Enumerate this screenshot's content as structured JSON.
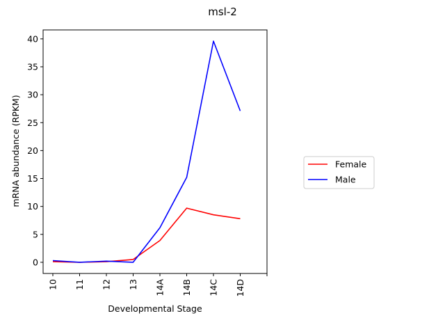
{
  "chart_data": {
    "type": "line",
    "title": "msl-2",
    "xlabel": "Developmental Stage",
    "ylabel": "mRNA abundance (RPKM)",
    "categories": [
      "10",
      "11",
      "12",
      "13",
      "14A",
      "14B",
      "14C",
      "14D"
    ],
    "x_extra_tick": "",
    "y_ticks": [
      0,
      5,
      10,
      15,
      20,
      25,
      30,
      35,
      40
    ],
    "ylim": [
      -2.0,
      41.6
    ],
    "grid": false,
    "legend_placement": "center-right, outside plot",
    "series": [
      {
        "name": "Female",
        "color": "#ff0000",
        "values": [
          0.1,
          0.0,
          0.1,
          0.5,
          3.9,
          9.7,
          8.5,
          7.8
        ]
      },
      {
        "name": "Male",
        "color": "#0000ff",
        "values": [
          0.3,
          0.0,
          0.2,
          0.0,
          6.2,
          15.2,
          39.6,
          27.1
        ]
      }
    ]
  }
}
